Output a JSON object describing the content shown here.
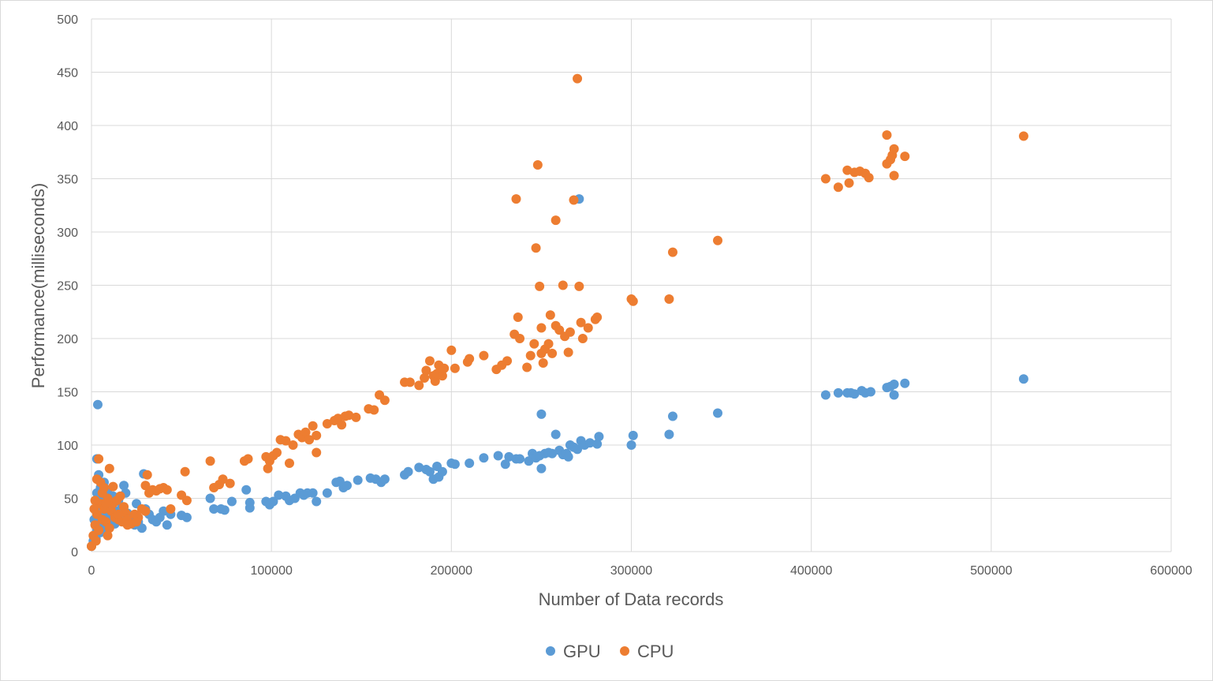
{
  "chart_data": {
    "type": "scatter",
    "title": "",
    "xlabel": "Number of Data records",
    "ylabel": "Performance(milliseconds)",
    "xlim": [
      0,
      600000
    ],
    "ylim": [
      0,
      500
    ],
    "x_ticks": [
      "0",
      "100000",
      "200000",
      "300000",
      "400000",
      "500000",
      "600000"
    ],
    "y_ticks": [
      "0",
      "50",
      "100",
      "150",
      "200",
      "250",
      "300",
      "350",
      "400",
      "450",
      "500"
    ],
    "grid": true,
    "legend_position": "bottom",
    "series": [
      {
        "name": "GPU",
        "color": "#5b9bd5",
        "points": [
          [
            0,
            5
          ],
          [
            1000,
            10
          ],
          [
            2000,
            15
          ],
          [
            3000,
            20
          ],
          [
            4000,
            25
          ],
          [
            5000,
            18
          ],
          [
            6000,
            30
          ],
          [
            7000,
            22
          ],
          [
            8000,
            35
          ],
          [
            9000,
            28
          ],
          [
            10000,
            40
          ],
          [
            11000,
            32
          ],
          [
            12000,
            45
          ],
          [
            13000,
            26
          ],
          [
            14000,
            38
          ],
          [
            15000,
            50
          ],
          [
            16000,
            33
          ],
          [
            17000,
            42
          ],
          [
            18000,
            29
          ],
          [
            19000,
            55
          ],
          [
            20000,
            36
          ],
          [
            22000,
            30
          ],
          [
            24000,
            25
          ],
          [
            26000,
            28
          ],
          [
            28000,
            22
          ],
          [
            30000,
            40
          ],
          [
            32000,
            35
          ],
          [
            34000,
            30
          ],
          [
            36000,
            28
          ],
          [
            38000,
            32
          ],
          [
            40000,
            38
          ],
          [
            42000,
            25
          ],
          [
            44000,
            35
          ],
          [
            2000,
            40
          ],
          [
            3000,
            55
          ],
          [
            4000,
            72
          ],
          [
            5000,
            60
          ],
          [
            6000,
            50
          ],
          [
            7000,
            65
          ],
          [
            8000,
            45
          ],
          [
            3500,
            138
          ],
          [
            3000,
            87
          ],
          [
            9000,
            58
          ],
          [
            12000,
            52
          ],
          [
            15000,
            48
          ],
          [
            18000,
            62
          ],
          [
            29000,
            73
          ],
          [
            25000,
            45
          ],
          [
            1500,
            30
          ],
          [
            2500,
            12
          ],
          [
            50000,
            34
          ],
          [
            53000,
            32
          ],
          [
            66000,
            50
          ],
          [
            68000,
            40
          ],
          [
            72000,
            40
          ],
          [
            74000,
            39
          ],
          [
            78000,
            47
          ],
          [
            86000,
            58
          ],
          [
            88000,
            41
          ],
          [
            88000,
            46
          ],
          [
            97000,
            47
          ],
          [
            99000,
            44
          ],
          [
            101000,
            47
          ],
          [
            104000,
            53
          ],
          [
            108000,
            52
          ],
          [
            110000,
            48
          ],
          [
            113000,
            50
          ],
          [
            116000,
            55
          ],
          [
            118000,
            53
          ],
          [
            120000,
            55
          ],
          [
            123000,
            55
          ],
          [
            125000,
            47
          ],
          [
            131000,
            55
          ],
          [
            136000,
            65
          ],
          [
            138000,
            66
          ],
          [
            140000,
            60
          ],
          [
            142000,
            62
          ],
          [
            148000,
            67
          ],
          [
            155000,
            69
          ],
          [
            158000,
            68
          ],
          [
            161000,
            65
          ],
          [
            163000,
            68
          ],
          [
            174000,
            72
          ],
          [
            176000,
            75
          ],
          [
            182000,
            79
          ],
          [
            186000,
            77
          ],
          [
            188000,
            75
          ],
          [
            190000,
            68
          ],
          [
            192000,
            80
          ],
          [
            193000,
            70
          ],
          [
            195000,
            75
          ],
          [
            200000,
            83
          ],
          [
            202000,
            82
          ],
          [
            210000,
            83
          ],
          [
            218000,
            88
          ],
          [
            226000,
            90
          ],
          [
            230000,
            82
          ],
          [
            232000,
            89
          ],
          [
            236000,
            87
          ],
          [
            238000,
            87
          ],
          [
            243000,
            85
          ],
          [
            245000,
            92
          ],
          [
            247000,
            88
          ],
          [
            249000,
            90
          ],
          [
            250000,
            78
          ],
          [
            250000,
            129
          ],
          [
            252000,
            92
          ],
          [
            254000,
            93
          ],
          [
            256000,
            92
          ],
          [
            258000,
            110
          ],
          [
            260000,
            95
          ],
          [
            262000,
            91
          ],
          [
            264000,
            92
          ],
          [
            265000,
            89
          ],
          [
            266000,
            100
          ],
          [
            268000,
            98
          ],
          [
            270000,
            96
          ],
          [
            271000,
            331
          ],
          [
            272000,
            104
          ],
          [
            274000,
            100
          ],
          [
            277000,
            102
          ],
          [
            281000,
            101
          ],
          [
            282000,
            108
          ],
          [
            300000,
            100
          ],
          [
            301000,
            109
          ],
          [
            321000,
            110
          ],
          [
            323000,
            127
          ],
          [
            348000,
            130
          ],
          [
            408000,
            147
          ],
          [
            415000,
            149
          ],
          [
            420000,
            149
          ],
          [
            422000,
            149
          ],
          [
            424000,
            148
          ],
          [
            428000,
            151
          ],
          [
            430000,
            149
          ],
          [
            433000,
            150
          ],
          [
            442000,
            154
          ],
          [
            444000,
            155
          ],
          [
            446000,
            157
          ],
          [
            446000,
            147
          ],
          [
            452000,
            158
          ],
          [
            518000,
            162
          ]
        ]
      },
      {
        "name": "CPU",
        "color": "#ed7d31",
        "points": [
          [
            0,
            5
          ],
          [
            1000,
            15
          ],
          [
            2000,
            25
          ],
          [
            3000,
            35
          ],
          [
            4000,
            20
          ],
          [
            5000,
            45
          ],
          [
            6000,
            30
          ],
          [
            7000,
            40
          ],
          [
            8000,
            28
          ],
          [
            9000,
            50
          ],
          [
            10000,
            22
          ],
          [
            11000,
            38
          ],
          [
            12000,
            45
          ],
          [
            13000,
            32
          ],
          [
            14000,
            48
          ],
          [
            15000,
            30
          ],
          [
            16000,
            52
          ],
          [
            17000,
            28
          ],
          [
            18000,
            42
          ],
          [
            19000,
            36
          ],
          [
            20000,
            30
          ],
          [
            22000,
            26
          ],
          [
            24000,
            35
          ],
          [
            26000,
            32
          ],
          [
            28000,
            40
          ],
          [
            30000,
            38
          ],
          [
            32000,
            55
          ],
          [
            34000,
            58
          ],
          [
            36000,
            57
          ],
          [
            38000,
            59
          ],
          [
            40000,
            60
          ],
          [
            42000,
            58
          ],
          [
            44000,
            40
          ],
          [
            2000,
            48
          ],
          [
            3000,
            68
          ],
          [
            4000,
            87
          ],
          [
            5000,
            65
          ],
          [
            6000,
            55
          ],
          [
            7000,
            60
          ],
          [
            8000,
            45
          ],
          [
            10000,
            78
          ],
          [
            12000,
            61
          ],
          [
            30000,
            62
          ],
          [
            31000,
            72
          ],
          [
            15000,
            35
          ],
          [
            20000,
            25
          ],
          [
            1500,
            40
          ],
          [
            2500,
            10
          ],
          [
            9000,
            15
          ],
          [
            25000,
            28
          ],
          [
            50000,
            53
          ],
          [
            52000,
            75
          ],
          [
            53000,
            48
          ],
          [
            66000,
            85
          ],
          [
            68000,
            60
          ],
          [
            71000,
            63
          ],
          [
            73000,
            68
          ],
          [
            77000,
            64
          ],
          [
            85000,
            85
          ],
          [
            87000,
            87
          ],
          [
            97000,
            89
          ],
          [
            98000,
            78
          ],
          [
            99000,
            85
          ],
          [
            101000,
            90
          ],
          [
            103000,
            93
          ],
          [
            105000,
            105
          ],
          [
            108000,
            104
          ],
          [
            110000,
            83
          ],
          [
            112000,
            100
          ],
          [
            115000,
            110
          ],
          [
            117000,
            107
          ],
          [
            119000,
            112
          ],
          [
            121000,
            105
          ],
          [
            123000,
            118
          ],
          [
            125000,
            109
          ],
          [
            125000,
            93
          ],
          [
            131000,
            120
          ],
          [
            135000,
            123
          ],
          [
            137000,
            125
          ],
          [
            139000,
            119
          ],
          [
            141000,
            127
          ],
          [
            143000,
            128
          ],
          [
            147000,
            126
          ],
          [
            154000,
            134
          ],
          [
            157000,
            133
          ],
          [
            160000,
            147
          ],
          [
            163000,
            142
          ],
          [
            174000,
            159
          ],
          [
            177000,
            159
          ],
          [
            182000,
            156
          ],
          [
            185000,
            163
          ],
          [
            186000,
            170
          ],
          [
            188000,
            179
          ],
          [
            190000,
            165
          ],
          [
            191000,
            160
          ],
          [
            192000,
            167
          ],
          [
            193000,
            175
          ],
          [
            195000,
            165
          ],
          [
            196000,
            172
          ],
          [
            200000,
            189
          ],
          [
            202000,
            172
          ],
          [
            209000,
            178
          ],
          [
            210000,
            181
          ],
          [
            218000,
            184
          ],
          [
            225000,
            171
          ],
          [
            228000,
            175
          ],
          [
            231000,
            179
          ],
          [
            235000,
            204
          ],
          [
            236000,
            331
          ],
          [
            237000,
            220
          ],
          [
            238000,
            200
          ],
          [
            242000,
            173
          ],
          [
            244000,
            184
          ],
          [
            246000,
            195
          ],
          [
            247000,
            285
          ],
          [
            248000,
            363
          ],
          [
            249000,
            249
          ],
          [
            250000,
            186
          ],
          [
            250000,
            210
          ],
          [
            251000,
            177
          ],
          [
            252000,
            190
          ],
          [
            254000,
            195
          ],
          [
            255000,
            222
          ],
          [
            256000,
            186
          ],
          [
            258000,
            212
          ],
          [
            258000,
            311
          ],
          [
            260000,
            208
          ],
          [
            262000,
            250
          ],
          [
            263000,
            202
          ],
          [
            265000,
            187
          ],
          [
            266000,
            206
          ],
          [
            268000,
            330
          ],
          [
            270000,
            444
          ],
          [
            271000,
            249
          ],
          [
            272000,
            215
          ],
          [
            273000,
            200
          ],
          [
            276000,
            210
          ],
          [
            280000,
            218
          ],
          [
            281000,
            220
          ],
          [
            300000,
            237
          ],
          [
            301000,
            235
          ],
          [
            321000,
            237
          ],
          [
            323000,
            281
          ],
          [
            348000,
            292
          ],
          [
            408000,
            350
          ],
          [
            415000,
            342
          ],
          [
            420000,
            358
          ],
          [
            421000,
            346
          ],
          [
            424000,
            356
          ],
          [
            427000,
            357
          ],
          [
            430000,
            355
          ],
          [
            432000,
            351
          ],
          [
            442000,
            391
          ],
          [
            442000,
            364
          ],
          [
            444000,
            368
          ],
          [
            445000,
            372
          ],
          [
            446000,
            378
          ],
          [
            446000,
            353
          ],
          [
            452000,
            371
          ],
          [
            518000,
            390
          ]
        ]
      }
    ]
  }
}
